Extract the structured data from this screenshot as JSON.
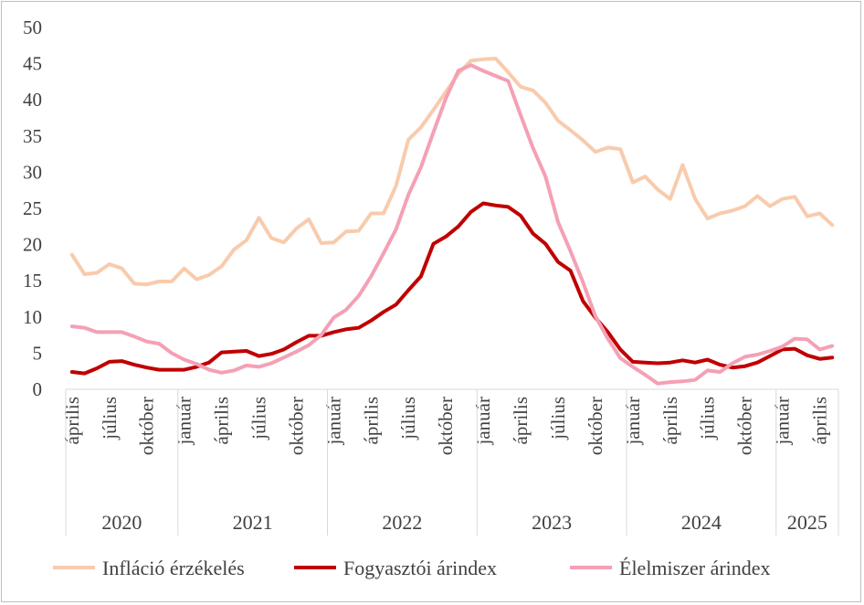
{
  "chart_data": {
    "type": "line",
    "title": "",
    "xlabel": "",
    "ylabel": "",
    "ylim": [
      0,
      50
    ],
    "yticks": [
      0,
      5,
      10,
      15,
      20,
      25,
      30,
      35,
      40,
      45,
      50
    ],
    "grid": false,
    "legend_position": "bottom",
    "x_start": "2020-04",
    "x": [
      "2020-04",
      "2020-05",
      "2020-06",
      "2020-07",
      "2020-08",
      "2020-09",
      "2020-10",
      "2020-11",
      "2020-12",
      "2021-01",
      "2021-02",
      "2021-03",
      "2021-04",
      "2021-05",
      "2021-06",
      "2021-07",
      "2021-08",
      "2021-09",
      "2021-10",
      "2021-11",
      "2021-12",
      "2022-01",
      "2022-02",
      "2022-03",
      "2022-04",
      "2022-05",
      "2022-06",
      "2022-07",
      "2022-08",
      "2022-09",
      "2022-10",
      "2022-11",
      "2022-12",
      "2023-01",
      "2023-02",
      "2023-03",
      "2023-04",
      "2023-05",
      "2023-06",
      "2023-07",
      "2023-08",
      "2023-09",
      "2023-10",
      "2023-11",
      "2023-12",
      "2024-01",
      "2024-02",
      "2024-03",
      "2024-04",
      "2024-05",
      "2024-06",
      "2024-07",
      "2024-08",
      "2024-09",
      "2024-10",
      "2024-11",
      "2024-12",
      "2025-01",
      "2025-02",
      "2025-03",
      "2025-04",
      "2025-05"
    ],
    "tick_labels": [
      {
        "label": "április",
        "month": "2020-04"
      },
      {
        "label": "július",
        "month": "2020-07"
      },
      {
        "label": "október",
        "month": "2020-10"
      },
      {
        "label": "január",
        "month": "2021-01"
      },
      {
        "label": "április",
        "month": "2021-04"
      },
      {
        "label": "július",
        "month": "2021-07"
      },
      {
        "label": "október",
        "month": "2021-10"
      },
      {
        "label": "január",
        "month": "2022-01"
      },
      {
        "label": "április",
        "month": "2022-04"
      },
      {
        "label": "július",
        "month": "2022-07"
      },
      {
        "label": "október",
        "month": "2022-10"
      },
      {
        "label": "január",
        "month": "2023-01"
      },
      {
        "label": "április",
        "month": "2023-04"
      },
      {
        "label": "július",
        "month": "2023-07"
      },
      {
        "label": "október",
        "month": "2023-10"
      },
      {
        "label": "január",
        "month": "2024-01"
      },
      {
        "label": "április",
        "month": "2024-04"
      },
      {
        "label": "július",
        "month": "2024-07"
      },
      {
        "label": "október",
        "month": "2024-10"
      },
      {
        "label": "január",
        "month": "2025-01"
      },
      {
        "label": "április",
        "month": "2025-04"
      }
    ],
    "years": [
      {
        "label": "2020",
        "start": "2020-04",
        "end": "2020-12"
      },
      {
        "label": "2021",
        "start": "2021-01",
        "end": "2021-12"
      },
      {
        "label": "2022",
        "start": "2022-01",
        "end": "2022-12"
      },
      {
        "label": "2023",
        "start": "2023-01",
        "end": "2023-12"
      },
      {
        "label": "2024",
        "start": "2024-01",
        "end": "2024-12"
      },
      {
        "label": "2025",
        "start": "2025-01",
        "end": "2025-05"
      }
    ],
    "series": [
      {
        "name": "Infláció érzékelés",
        "color": "#f8cbad",
        "values": [
          18.6,
          15.9,
          16.1,
          17.3,
          16.7,
          14.6,
          14.5,
          14.9,
          14.9,
          16.7,
          15.2,
          15.8,
          17.0,
          19.3,
          20.6,
          23.7,
          20.9,
          20.3,
          22.2,
          23.5,
          20.2,
          20.3,
          21.8,
          21.9,
          24.3,
          24.3,
          28.1,
          34.5,
          36.2,
          38.6,
          41.1,
          43.6,
          45.4,
          45.6,
          45.7,
          43.8,
          41.8,
          41.3,
          39.6,
          37.1,
          35.8,
          34.4,
          32.8,
          33.4,
          33.2,
          28.6,
          29.4,
          27.6,
          26.3,
          31.0,
          26.3,
          23.6,
          24.3,
          24.7,
          25.3,
          26.7,
          25.3,
          26.3,
          26.6,
          23.9,
          24.3,
          22.7
        ]
      },
      {
        "name": "Fogyasztói árindex",
        "color": "#c00000",
        "values": [
          2.4,
          2.2,
          2.9,
          3.8,
          3.9,
          3.4,
          3.0,
          2.7,
          2.7,
          2.7,
          3.1,
          3.7,
          5.1,
          5.2,
          5.3,
          4.6,
          4.9,
          5.5,
          6.5,
          7.4,
          7.4,
          7.9,
          8.3,
          8.5,
          9.5,
          10.7,
          11.7,
          13.7,
          15.6,
          20.1,
          21.1,
          22.5,
          24.5,
          25.7,
          25.4,
          25.2,
          24.0,
          21.5,
          20.1,
          17.6,
          16.4,
          12.2,
          9.9,
          7.9,
          5.5,
          3.8,
          3.7,
          3.6,
          3.7,
          4.0,
          3.7,
          4.1,
          3.4,
          3.0,
          3.2,
          3.7,
          4.6,
          5.5,
          5.6,
          4.7,
          4.2,
          4.4
        ]
      },
      {
        "name": "Élelmiszer árindex",
        "color": "#f4a0b5",
        "values": [
          8.7,
          8.5,
          7.9,
          7.9,
          7.9,
          7.3,
          6.6,
          6.3,
          5.0,
          4.1,
          3.5,
          2.7,
          2.3,
          2.6,
          3.3,
          3.1,
          3.6,
          4.4,
          5.2,
          6.1,
          7.5,
          9.9,
          11.0,
          12.9,
          15.6,
          18.8,
          22.1,
          26.9,
          30.7,
          35.5,
          40.2,
          44.0,
          44.8,
          44.0,
          43.3,
          42.6,
          37.9,
          33.3,
          29.4,
          23.1,
          19.1,
          14.8,
          10.1,
          7.0,
          4.3,
          3.1,
          2.0,
          0.8,
          1.0,
          1.1,
          1.3,
          2.6,
          2.4,
          3.6,
          4.5,
          4.8,
          5.3,
          5.9,
          7.0,
          6.9,
          5.5,
          6.0
        ]
      }
    ]
  }
}
